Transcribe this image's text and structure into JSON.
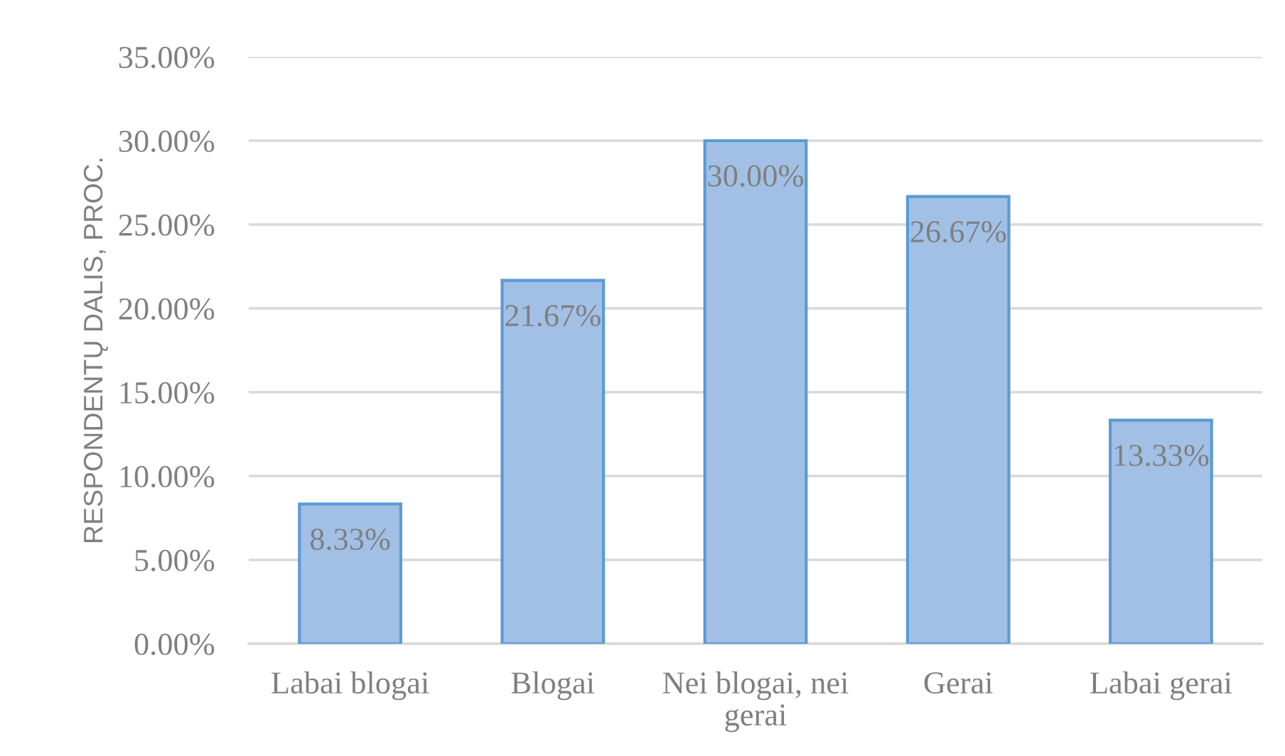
{
  "chart_data": {
    "type": "bar",
    "ylabel": "RESPONDENTŲ DALIS, PROC.",
    "categories": [
      "Labai blogai",
      "Blogai",
      "Nei blogai, nei gerai",
      "Gerai",
      "Labai gerai"
    ],
    "values": [
      8.33,
      21.67,
      30.0,
      26.67,
      13.33
    ],
    "value_labels": [
      "8.33%",
      "21.67%",
      "30.00%",
      "26.67%",
      "13.33%"
    ],
    "color": "#a2c0e6",
    "ylim": [
      0,
      35
    ],
    "yticks": [
      {
        "value": 0,
        "label": "0.00%"
      },
      {
        "value": 5,
        "label": "5.00%"
      },
      {
        "value": 10,
        "label": "10.00%"
      },
      {
        "value": 15,
        "label": "15.00%"
      },
      {
        "value": 20,
        "label": "20.00%"
      },
      {
        "value": 25,
        "label": "25.00%"
      },
      {
        "value": 30,
        "label": "30.00%"
      },
      {
        "value": 35,
        "label": "35.00%"
      }
    ],
    "grid": "y"
  }
}
